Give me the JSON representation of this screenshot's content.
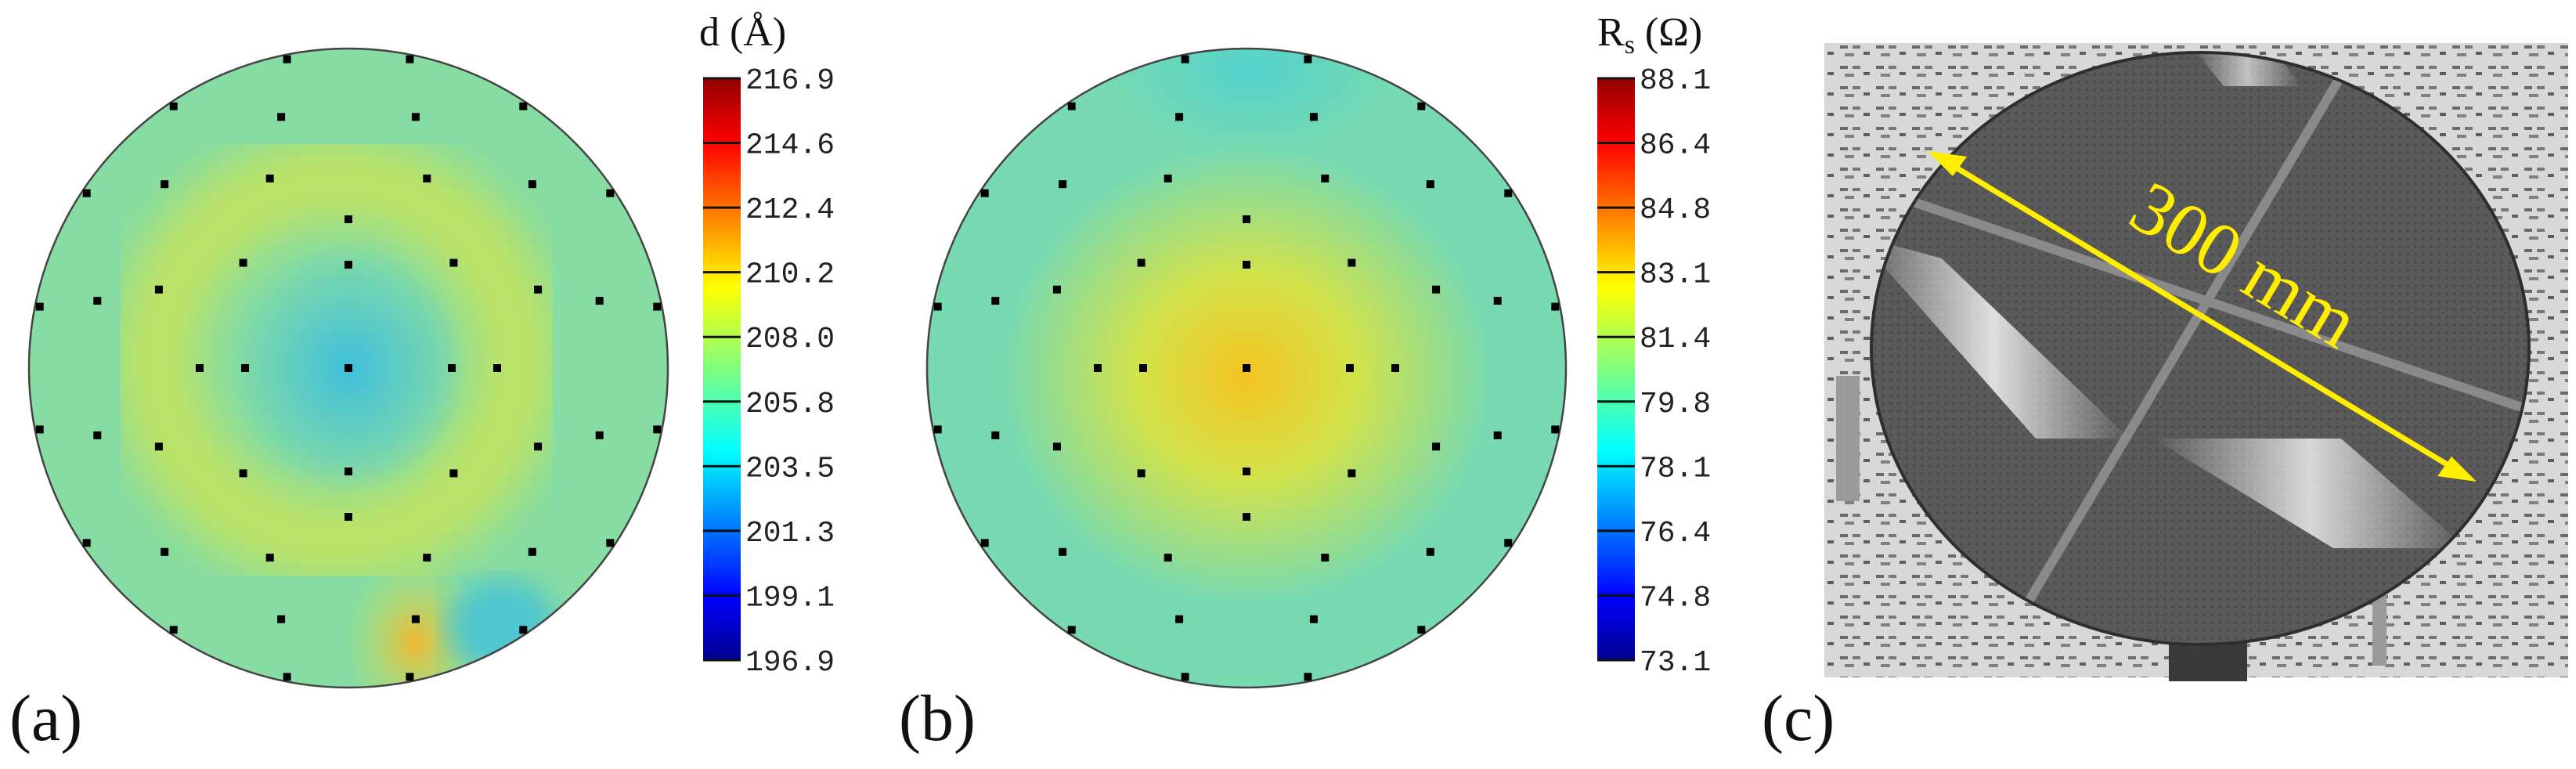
{
  "chart_data": [
    {
      "type": "heatmap",
      "panel_label": "(a)",
      "colorbar": {
        "title": "d (Å)",
        "ticks": [
          "216.9",
          "214.6",
          "212.4",
          "210.2",
          "208.0",
          "205.8",
          "203.5",
          "201.3",
          "199.1",
          "196.9"
        ],
        "range": [
          196.9,
          216.9
        ]
      },
      "colors": {
        "background": "#86dca3",
        "center": "#3fc0dc",
        "ring": "#c8e45a",
        "hotspot": "#f0b832"
      }
    },
    {
      "type": "heatmap",
      "panel_label": "(b)",
      "colorbar": {
        "title_main": "R",
        "title_sub": "s",
        "title_unit": " (Ω)",
        "ticks": [
          "88.1",
          "86.4",
          "84.8",
          "83.1",
          "81.4",
          "79.8",
          "78.1",
          "76.4",
          "74.8",
          "73.1"
        ],
        "range": [
          73.1,
          88.1
        ]
      },
      "colors": {
        "background": "#78dab0",
        "center": "#f5c420",
        "inner": "#d2e24a",
        "top": "#52d2cc"
      }
    }
  ],
  "photo": {
    "panel_label": "(c)",
    "annotation": "300 mm",
    "arrow_color": "#ffee00"
  }
}
